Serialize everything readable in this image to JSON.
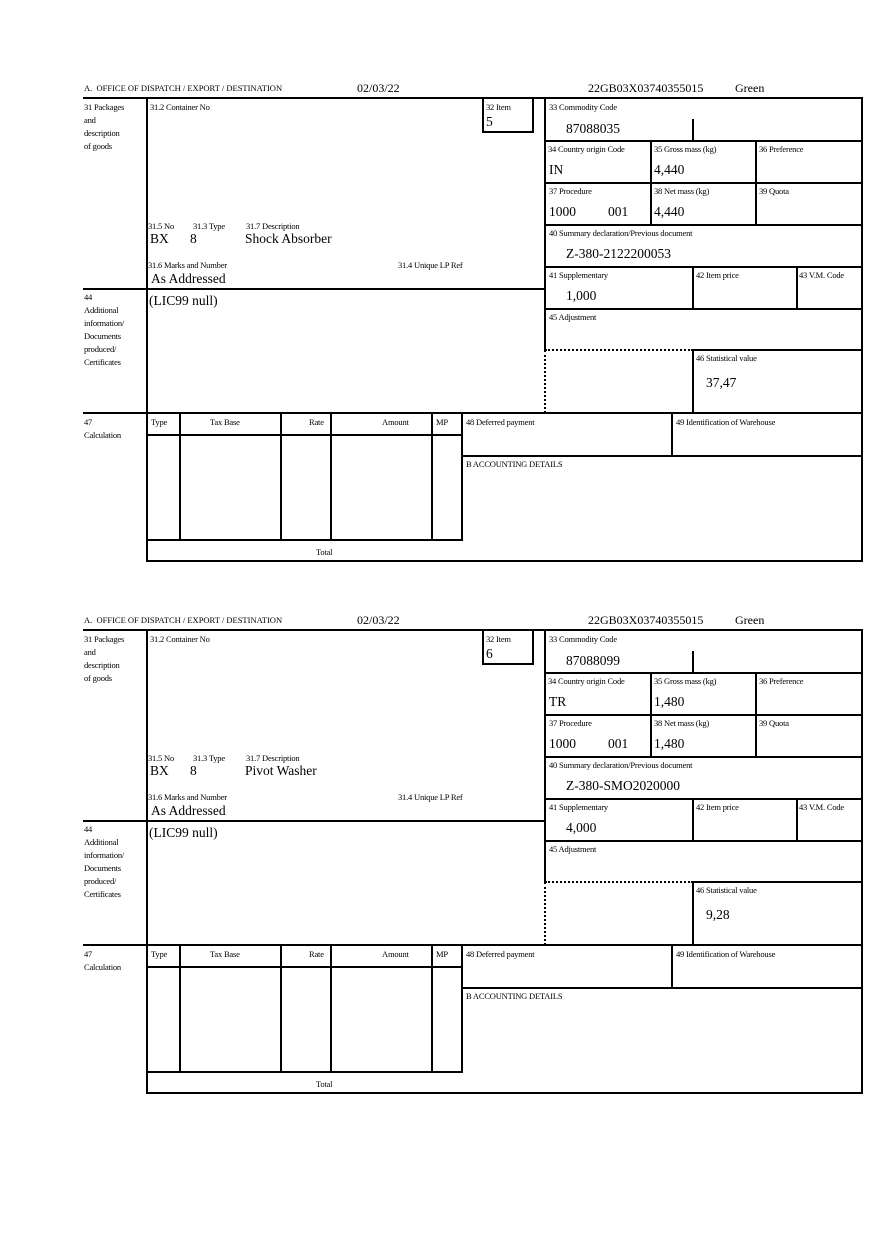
{
  "forms": [
    {
      "header": {
        "office_label": "A.  OFFICE OF DISPATCH / EXPORT / DESTINATION",
        "date": "02/03/22",
        "reference": "22GB03X03740355015",
        "channel": "Green"
      },
      "labels": {
        "packages": "31 Packages\nand\ndescription\nof goods",
        "container_no": "31.2 Container No",
        "item": "32 Item",
        "commodity_code": "33 Commodity Code",
        "country_origin": "34 Country origin Code",
        "gross_mass": "35 Gross mass (kg)",
        "preference": "36 Preference",
        "procedure": "37 Procedure",
        "net_mass": "38 Net mass (kg)",
        "quota": "39 Quota",
        "summary_declaration": "40 Summary declaration/Previous document",
        "supplementary": "41 Supplementary",
        "item_price": "42 Item price",
        "vm_code": "43 V.M. Code",
        "adjustment": "45 Adjustment",
        "statistical_value": "46 Statistical value",
        "pkg_no": "31.5 No",
        "pkg_type": "31.3 Type",
        "description": "31.7 Description",
        "marks": "31.6 Marks and Number",
        "unique_ref": "31.4 Unique LP Ref",
        "additional_info": "44\nAdditional\ninformation/\nDocuments\nproduced/\nCertificates",
        "calculation": "47\nCalculation",
        "col_type": "Type",
        "col_tax_base": "Tax Base",
        "col_rate": "Rate",
        "col_amount": "Amount",
        "col_mp": "MP",
        "deferred_payment": "48 Deferred payment",
        "warehouse": "49 Identification of Warehouse",
        "accounting": "B ACCOUNTING DETAILS",
        "total": "Total"
      },
      "values": {
        "item": "5",
        "commodity_code": "87088035",
        "country_origin": "IN",
        "gross_mass": "4,440",
        "procedure": "1000",
        "procedure_extra": "001",
        "net_mass": "4,440",
        "summary_declaration": "Z-380-2122200053",
        "supplementary": "1,000",
        "statistical_value": "37,47",
        "pkg_no": "BX",
        "pkg_type": "8",
        "description": "Shock Absorber",
        "marks": "As Addressed",
        "additional_info": "(LIC99 null)"
      }
    },
    {
      "header": {
        "office_label": "A.  OFFICE OF DISPATCH / EXPORT / DESTINATION",
        "date": "02/03/22",
        "reference": "22GB03X03740355015",
        "channel": "Green"
      },
      "labels": {
        "packages": "31 Packages\nand\ndescription\nof goods",
        "container_no": "31.2 Container No",
        "item": "32 Item",
        "commodity_code": "33 Commodity Code",
        "country_origin": "34 Country origin Code",
        "gross_mass": "35 Gross mass (kg)",
        "preference": "36 Preference",
        "procedure": "37 Procedure",
        "net_mass": "38 Net mass (kg)",
        "quota": "39 Quota",
        "summary_declaration": "40 Summary declaration/Previous document",
        "supplementary": "41 Supplementary",
        "item_price": "42 Item price",
        "vm_code": "43 V.M. Code",
        "adjustment": "45 Adjustment",
        "statistical_value": "46 Statistical value",
        "pkg_no": "31.5 No",
        "pkg_type": "31.3 Type",
        "description": "31.7 Description",
        "marks": "31.6 Marks and Number",
        "unique_ref": "31.4 Unique LP Ref",
        "additional_info": "44\nAdditional\ninformation/\nDocuments\nproduced/\nCertificates",
        "calculation": "47\nCalculation",
        "col_type": "Type",
        "col_tax_base": "Tax Base",
        "col_rate": "Rate",
        "col_amount": "Amount",
        "col_mp": "MP",
        "deferred_payment": "48 Deferred payment",
        "warehouse": "49 Identification of Warehouse",
        "accounting": "B ACCOUNTING DETAILS",
        "total": "Total"
      },
      "values": {
        "item": "6",
        "commodity_code": "87088099",
        "country_origin": "TR",
        "gross_mass": "1,480",
        "procedure": "1000",
        "procedure_extra": "001",
        "net_mass": "1,480",
        "summary_declaration": "Z-380-SMO2020000",
        "supplementary": "4,000",
        "statistical_value": "9,28",
        "pkg_no": "BX",
        "pkg_type": "8",
        "description": "Pivot Washer",
        "marks": "As Addressed",
        "additional_info": "(LIC99 null)"
      }
    }
  ]
}
